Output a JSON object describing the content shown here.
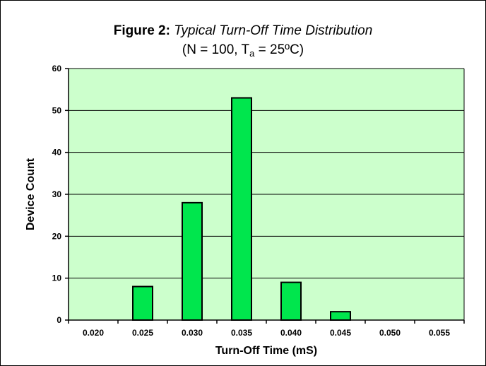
{
  "chart_data": {
    "type": "bar",
    "title_prefix": "Figure 2:",
    "title_main": "Typical Turn-Off Time Distribution",
    "subtitle_pre": "(N = 100, T",
    "subtitle_sub": "a",
    "subtitle_post": " = 25ºC)",
    "xlabel": "Turn-Off Time (mS)",
    "ylabel": "Device Count",
    "categories": [
      "0.020",
      "0.025",
      "0.030",
      "0.035",
      "0.040",
      "0.045",
      "0.050",
      "0.055"
    ],
    "values": [
      0,
      8,
      28,
      53,
      9,
      2,
      0,
      0
    ],
    "ylim": [
      0,
      60
    ],
    "yticks": [
      0,
      10,
      20,
      30,
      40,
      50,
      60
    ],
    "grid": true,
    "colors": {
      "plot_background": "#ccffcc",
      "bar_fill": "#00e64d",
      "bar_stroke": "#000000",
      "gridline": "#000000"
    }
  }
}
